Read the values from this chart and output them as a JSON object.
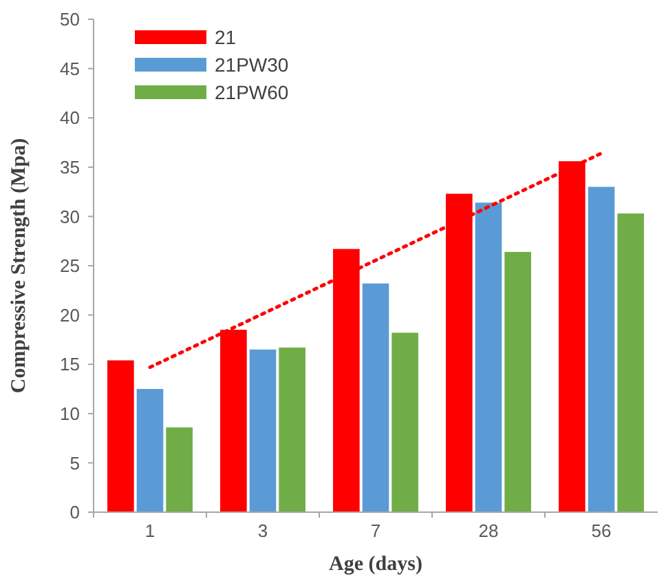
{
  "chart_data": {
    "type": "bar",
    "xlabel": "Age (days)",
    "ylabel": "Compressive Strength (Mpa)",
    "categories": [
      "1",
      "3",
      "7",
      "28",
      "56"
    ],
    "series": [
      {
        "name": "21",
        "color": "#ff0000",
        "values": [
          15.4,
          18.5,
          26.7,
          32.3,
          35.6
        ]
      },
      {
        "name": "21PW30",
        "color": "#5b9bd5",
        "values": [
          12.5,
          16.5,
          23.2,
          31.4,
          33.0
        ]
      },
      {
        "name": "21PW60",
        "color": "#70ad47",
        "values": [
          8.6,
          16.7,
          18.2,
          26.4,
          30.3
        ]
      },
      {
        "type": "line",
        "color": "#ff0000",
        "x": [
          "1",
          "56"
        ],
        "values": [
          14.7,
          36.4
        ],
        "line_style": "dotted"
      }
    ],
    "ylim": [
      0,
      50
    ],
    "yticks": [
      0,
      5,
      10,
      15,
      20,
      25,
      30,
      35,
      40,
      45,
      50
    ],
    "grid": false,
    "legend": "top left"
  }
}
